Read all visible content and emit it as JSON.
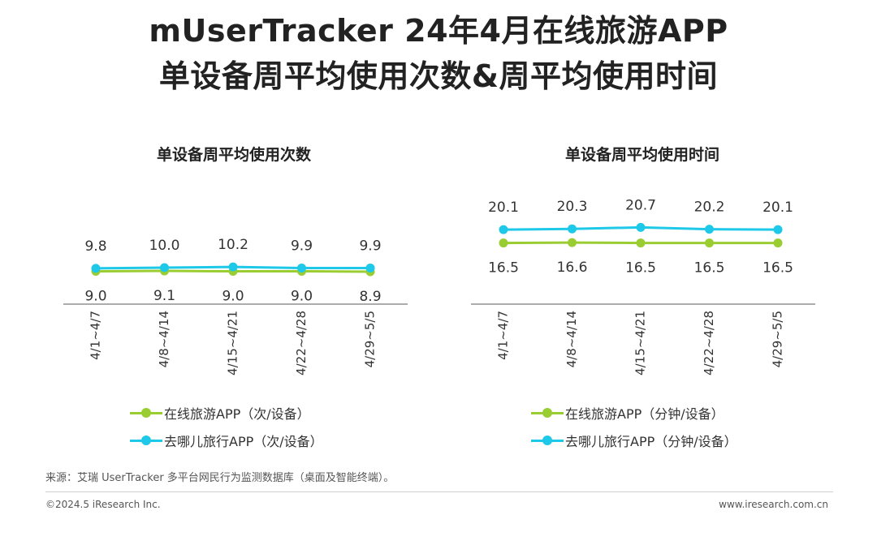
{
  "header": {
    "title_line1": "mUserTracker 24年4月在线旅游APP",
    "title_line2": "单设备周平均使用次数&周平均使用时间"
  },
  "colors": {
    "online_travel": "#9ACD32",
    "qunar": "#1EC8E8",
    "axis": "#595959"
  },
  "chart_data": [
    {
      "type": "line",
      "title": "单设备周平均使用次数",
      "categories": [
        "4/1~4/7",
        "4/8~4/14",
        "4/15~4/21",
        "4/22~4/28",
        "4/29~5/5"
      ],
      "series": [
        {
          "name": "在线旅游APP（次/设备）",
          "values": [
            9.0,
            9.1,
            9.0,
            9.0,
            8.9
          ],
          "labels": [
            "9.0",
            "9.1",
            "9.0",
            "9.0",
            "8.9"
          ],
          "color": "#9ACD32",
          "label_position": "below"
        },
        {
          "name": "去哪儿旅行APP（次/设备）",
          "values": [
            9.8,
            10.0,
            10.2,
            9.9,
            9.9
          ],
          "labels": [
            "9.8",
            "10.0",
            "10.2",
            "9.9",
            "9.9"
          ],
          "color": "#1EC8E8",
          "label_position": "above"
        }
      ],
      "ylim": [
        0,
        30
      ],
      "grid": false,
      "legend": "bottom"
    },
    {
      "type": "line",
      "title": "单设备周平均使用时间",
      "categories": [
        "4/1~4/7",
        "4/8~4/14",
        "4/15~4/21",
        "4/22~4/28",
        "4/29~5/5"
      ],
      "series": [
        {
          "name": "在线旅游APP（分钟/设备）",
          "values": [
            16.5,
            16.6,
            16.5,
            16.5,
            16.5
          ],
          "labels": [
            "16.5",
            "16.6",
            "16.5",
            "16.5",
            "16.5"
          ],
          "color": "#9ACD32",
          "label_position": "below"
        },
        {
          "name": "去哪儿旅行APP（分钟/设备）",
          "values": [
            20.1,
            20.3,
            20.7,
            20.2,
            20.1
          ],
          "labels": [
            "20.1",
            "20.3",
            "20.7",
            "20.2",
            "20.1"
          ],
          "color": "#1EC8E8",
          "label_position": "above"
        }
      ],
      "ylim": [
        0,
        35
      ],
      "grid": false,
      "legend": "bottom"
    }
  ],
  "footer": {
    "source": "来源：艾瑞 UserTracker 多平台网民行为监测数据库（桌面及智能终端）。",
    "copyright": "©2024.5 iResearch Inc.",
    "website": "www.iresearch.com.cn"
  }
}
